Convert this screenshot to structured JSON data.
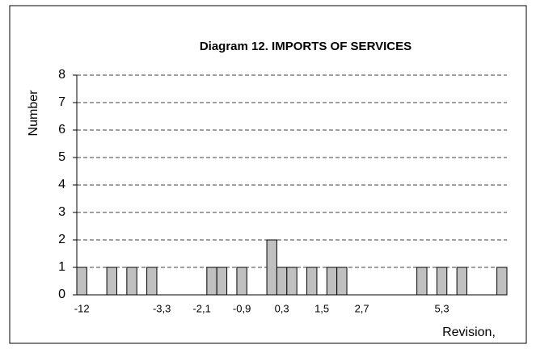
{
  "chart_data": {
    "type": "bar",
    "title": "Diagram 12.  IMPORTS OF SERVICES",
    "x_label": "Revision,",
    "y_label": "Number",
    "categories": [
      "-12",
      null,
      null,
      null,
      null,
      null,
      null,
      null,
      "-3,3",
      null,
      null,
      null,
      "-2,1",
      null,
      null,
      null,
      "-0,9",
      null,
      null,
      null,
      "0,3",
      null,
      null,
      null,
      "1,5",
      null,
      null,
      null,
      "2,7",
      null,
      null,
      null,
      null,
      null,
      null,
      null,
      "5,3",
      null,
      null,
      null,
      null,
      null,
      null
    ],
    "values": [
      1,
      0,
      0,
      1,
      0,
      1,
      0,
      1,
      0,
      0,
      0,
      0,
      0,
      1,
      1,
      0,
      1,
      0,
      0,
      2,
      1,
      1,
      0,
      1,
      0,
      1,
      1,
      0,
      0,
      0,
      0,
      0,
      0,
      0,
      1,
      0,
      1,
      0,
      1,
      0,
      0,
      0,
      1
    ],
    "color": "#c0c0c0",
    "ylim": [
      0,
      8
    ],
    "yticks": [
      0,
      1,
      2,
      3,
      4,
      5,
      6,
      7,
      8
    ],
    "grid": true
  }
}
